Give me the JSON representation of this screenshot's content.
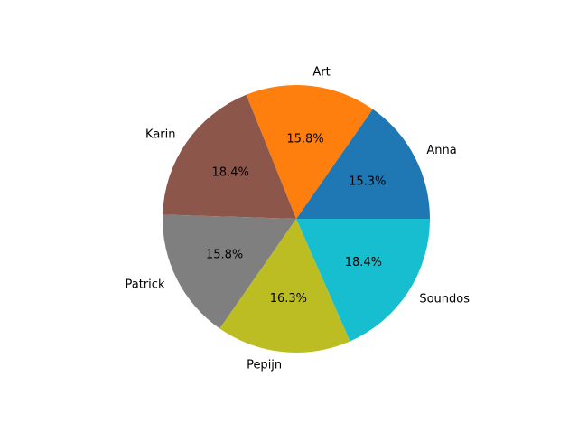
{
  "chart_data": {
    "type": "pie",
    "title": "",
    "labels": [
      "Anna",
      "Art",
      "Karin",
      "Patrick",
      "Pepijn",
      "Soundos"
    ],
    "values": [
      15.3,
      15.8,
      18.4,
      15.8,
      16.3,
      18.4
    ],
    "percent_labels": [
      "15.3%",
      "15.8%",
      "18.4%",
      "15.8%",
      "16.3%",
      "18.4%"
    ],
    "colors": [
      "#1f77b4",
      "#ff7f0e",
      "#8c564b",
      "#7f7f7f",
      "#bcbd22",
      "#17becf"
    ],
    "start_angle_deg": 0,
    "direction": "counterclockwise",
    "legend": "none"
  }
}
